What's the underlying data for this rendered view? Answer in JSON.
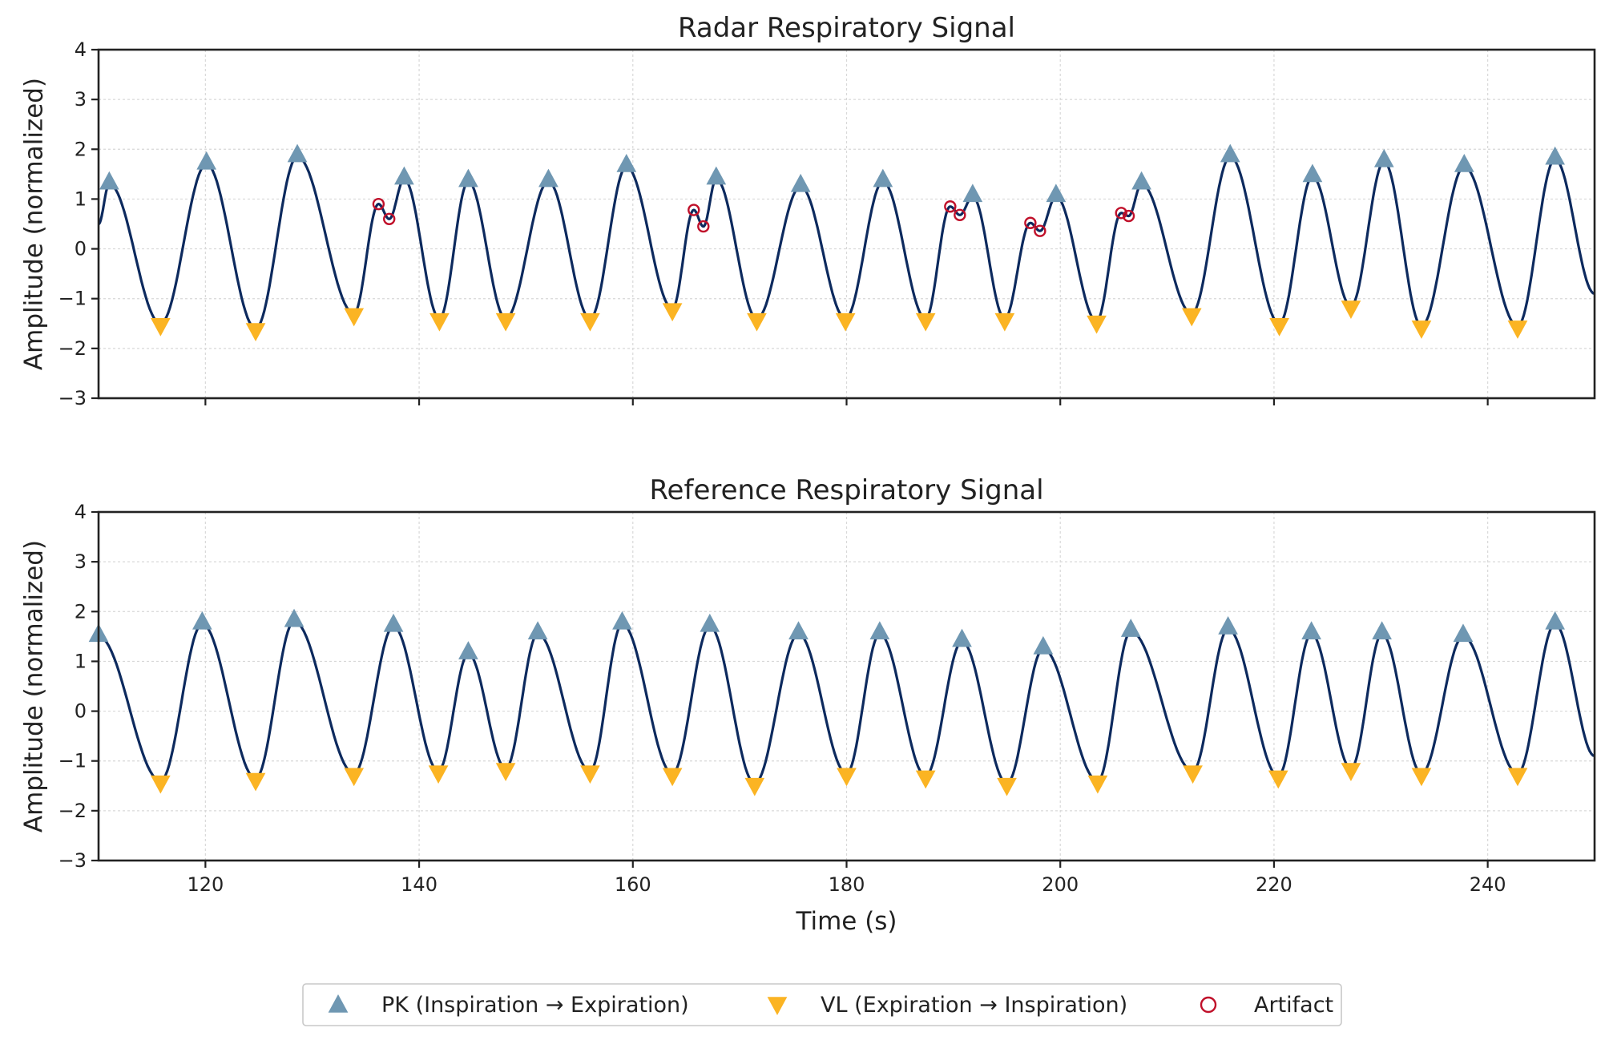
{
  "colors": {
    "signal": "#0d2a5e",
    "peak": "#6f97b2",
    "valley": "#fbb423",
    "artifact": "#c0102a"
  },
  "chart_data": {
    "type": "line",
    "xlabel": "Time (s)",
    "xlim": [
      110,
      250
    ],
    "x_ticks": [
      120,
      140,
      160,
      180,
      200,
      220,
      240
    ],
    "legend_position": "bottom-center",
    "legend": [
      {
        "key": "peak",
        "label": "PK (Inspiration → Expiration)",
        "marker": "triangle-up"
      },
      {
        "key": "valley",
        "label": "VL (Expiration → Inspiration)",
        "marker": "triangle-down"
      },
      {
        "key": "artifact",
        "label": "Artifact",
        "marker": "circle-open"
      }
    ],
    "panels": [
      {
        "title": "Radar Respiratory Signal",
        "ylabel": "Amplitude (normalized)",
        "ylim": [
          -3,
          4
        ],
        "y_ticks": [
          -3,
          -2,
          -1,
          0,
          1,
          2,
          3,
          4
        ],
        "signal_start": [
          110,
          0.5
        ],
        "signal_end": [
          250,
          -0.9
        ],
        "peaks": [
          [
            111,
            1.3
          ],
          [
            120.1,
            1.7
          ],
          [
            128.6,
            1.85
          ],
          [
            138.6,
            1.4
          ],
          [
            144.6,
            1.35
          ],
          [
            152.1,
            1.35
          ],
          [
            159.4,
            1.65
          ],
          [
            167.8,
            1.4
          ],
          [
            175.7,
            1.25
          ],
          [
            183.4,
            1.35
          ],
          [
            191.8,
            1.05
          ],
          [
            199.6,
            1.05
          ],
          [
            207.6,
            1.3
          ],
          [
            215.9,
            1.85
          ],
          [
            223.6,
            1.45
          ],
          [
            230.3,
            1.75
          ],
          [
            237.8,
            1.65
          ],
          [
            246.3,
            1.8
          ]
        ],
        "valleys": [
          [
            115.8,
            -1.5
          ],
          [
            124.7,
            -1.6
          ],
          [
            133.9,
            -1.3
          ],
          [
            141.9,
            -1.4
          ],
          [
            148.1,
            -1.4
          ],
          [
            156,
            -1.4
          ],
          [
            163.7,
            -1.2
          ],
          [
            171.6,
            -1.4
          ],
          [
            179.9,
            -1.4
          ],
          [
            187.4,
            -1.4
          ],
          [
            194.8,
            -1.4
          ],
          [
            203.4,
            -1.45
          ],
          [
            212.3,
            -1.3
          ],
          [
            220.5,
            -1.5
          ],
          [
            227.2,
            -1.15
          ],
          [
            233.8,
            -1.55
          ],
          [
            242.8,
            -1.55
          ]
        ],
        "artifacts": [
          [
            136.2,
            0.9
          ],
          [
            137.2,
            0.6
          ],
          [
            165.7,
            0.78
          ],
          [
            166.6,
            0.45
          ],
          [
            189.7,
            0.85
          ],
          [
            190.6,
            0.68
          ],
          [
            197.2,
            0.52
          ],
          [
            198.1,
            0.36
          ],
          [
            205.7,
            0.72
          ],
          [
            206.4,
            0.66
          ]
        ]
      },
      {
        "title": "Reference Respiratory Signal",
        "ylabel": "Amplitude (normalized)",
        "ylim": [
          -3,
          4
        ],
        "y_ticks": [
          -3,
          -2,
          -1,
          0,
          1,
          2,
          3,
          4
        ],
        "signal_start": [
          110,
          1.5
        ],
        "signal_end": [
          250,
          -0.9
        ],
        "peaks": [
          [
            110,
            1.5
          ],
          [
            119.7,
            1.75
          ],
          [
            128.3,
            1.8
          ],
          [
            137.6,
            1.7
          ],
          [
            144.6,
            1.15
          ],
          [
            151.1,
            1.55
          ],
          [
            159,
            1.75
          ],
          [
            167.2,
            1.7
          ],
          [
            175.5,
            1.55
          ],
          [
            183.1,
            1.55
          ],
          [
            190.8,
            1.4
          ],
          [
            198.4,
            1.25
          ],
          [
            206.6,
            1.6
          ],
          [
            215.7,
            1.65
          ],
          [
            223.5,
            1.55
          ],
          [
            230.1,
            1.55
          ],
          [
            237.7,
            1.5
          ],
          [
            246.3,
            1.75
          ]
        ],
        "valleys": [
          [
            115.8,
            -1.4
          ],
          [
            124.7,
            -1.35
          ],
          [
            133.9,
            -1.25
          ],
          [
            141.8,
            -1.2
          ],
          [
            148.1,
            -1.15
          ],
          [
            156,
            -1.2
          ],
          [
            163.7,
            -1.25
          ],
          [
            171.4,
            -1.45
          ],
          [
            180,
            -1.25
          ],
          [
            187.4,
            -1.3
          ],
          [
            195,
            -1.45
          ],
          [
            203.5,
            -1.4
          ],
          [
            212.4,
            -1.2
          ],
          [
            220.4,
            -1.3
          ],
          [
            227.2,
            -1.15
          ],
          [
            233.8,
            -1.25
          ],
          [
            242.8,
            -1.25
          ]
        ],
        "artifacts": []
      }
    ]
  }
}
